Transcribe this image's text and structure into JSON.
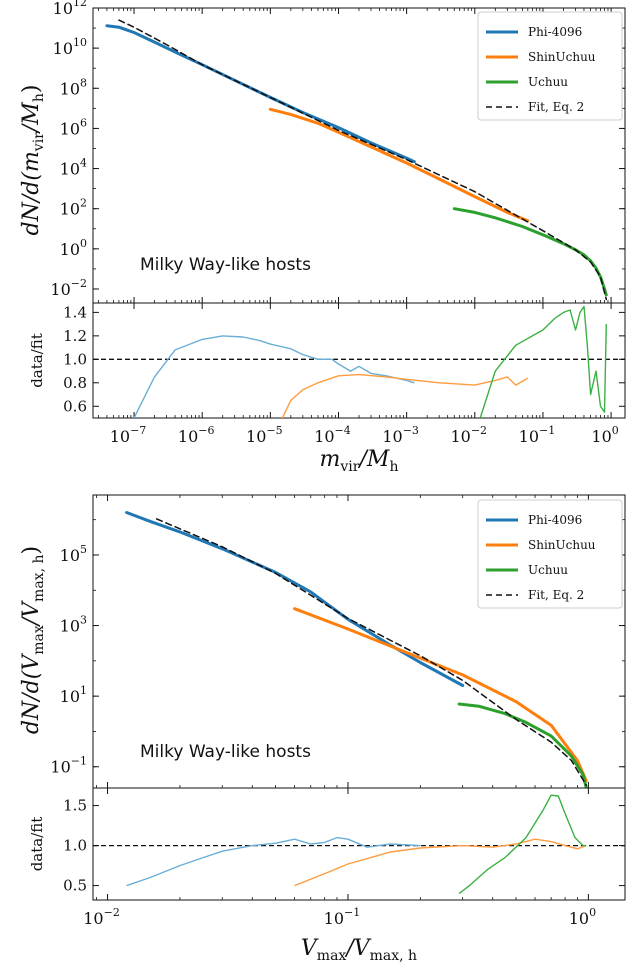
{
  "chart_data": [
    {
      "type": "line",
      "annotation": "Milky Way-like hosts",
      "xlabel_main": "m",
      "xlabel_sub": "vir",
      "xlabel_den": "/M",
      "xlabel_den_sub": "h",
      "ylabel_main": "dN/d(m",
      "ylabel_sub": "vir",
      "ylabel_den": "/M",
      "ylabel_den_sub": "h",
      "ylabel_close": ")",
      "ratio_ylabel": "data/fit",
      "xscale": "log",
      "yscale": "log",
      "xlim": [
        2.5e-08,
        1.6
      ],
      "ylim": [
        0.002,
        1000000000000.0
      ],
      "ratio_ylim": [
        0.5,
        1.48
      ],
      "x_ticks": [
        {
          "value": 1e-07,
          "base": "10",
          "exp": "−7"
        },
        {
          "value": 1e-06,
          "base": "10",
          "exp": "−6"
        },
        {
          "value": 1e-05,
          "base": "10",
          "exp": "−5"
        },
        {
          "value": 0.0001,
          "base": "10",
          "exp": "−4"
        },
        {
          "value": 0.001,
          "base": "10",
          "exp": "−3"
        },
        {
          "value": 0.01,
          "base": "10",
          "exp": "−2"
        },
        {
          "value": 0.1,
          "base": "10",
          "exp": "−1"
        },
        {
          "value": 1,
          "base": "10",
          "exp": "0"
        }
      ],
      "y_ticks": [
        {
          "value": 0.01,
          "base": "10",
          "exp": "−2"
        },
        {
          "value": 1,
          "base": "10",
          "exp": "0"
        },
        {
          "value": 100,
          "base": "10",
          "exp": "2"
        },
        {
          "value": 10000,
          "base": "10",
          "exp": "4"
        },
        {
          "value": 1000000,
          "base": "10",
          "exp": "6"
        },
        {
          "value": 100000000,
          "base": "10",
          "exp": "8"
        },
        {
          "value": 10000000000,
          "base": "10",
          "exp": "10"
        },
        {
          "value": 1000000000000,
          "base": "10",
          "exp": "12"
        }
      ],
      "ratio_ticks": [
        {
          "value": 0.6,
          "label": "0.6"
        },
        {
          "value": 0.8,
          "label": "0.8"
        },
        {
          "value": 1.0,
          "label": "1.0"
        },
        {
          "value": 1.2,
          "label": "1.2"
        },
        {
          "value": 1.4,
          "label": "1.4"
        }
      ],
      "legend": [
        "Phi-4096",
        "ShinUchuu",
        "Uchuu",
        "Fit, Eq. 2"
      ],
      "legend_position": "top-right",
      "series": [
        {
          "name": "Phi-4096",
          "color": "#1f77b4",
          "style": "solid",
          "x": [
            4e-08,
            6e-08,
            1e-07,
            2e-07,
            5e-07,
            1e-06,
            3e-06,
            1e-05,
            3e-05,
            0.0001,
            0.0003,
            0.001,
            0.0013
          ],
          "y": [
            130000000000.0,
            110000000000.0,
            60000000000.0,
            20000000000.0,
            4500000000.0,
            1500000000.0,
            250000000.0,
            35000000.0,
            6200000.0,
            1100000.0,
            190000.0,
            33000.0,
            22000.0
          ]
        },
        {
          "name": "ShinUchuu",
          "color": "#ff7f0e",
          "style": "solid",
          "x": [
            1e-05,
            2e-05,
            5e-05,
            0.0001,
            0.0003,
            0.001,
            0.003,
            0.01,
            0.03,
            0.06
          ],
          "y": [
            9000000.0,
            5000000.0,
            1800000.0,
            650000.0,
            120000.0,
            19000.0,
            3000.0,
            400,
            65,
            25
          ]
        },
        {
          "name": "Uchuu",
          "color": "#2ca02c",
          "style": "solid",
          "x": [
            0.005,
            0.01,
            0.02,
            0.05,
            0.1,
            0.2,
            0.3,
            0.4,
            0.5,
            0.6,
            0.7,
            0.8,
            0.85
          ],
          "y": [
            100,
            65,
            35,
            13,
            5,
            1.8,
            0.9,
            0.5,
            0.25,
            0.11,
            0.04,
            0.01,
            0.005
          ]
        },
        {
          "name": "Fit, Eq. 2",
          "color": "#111111",
          "style": "dashed",
          "x": [
            6e-08,
            1e-07,
            3e-07,
            1e-06,
            1e-05,
            0.0001,
            0.001,
            0.01,
            0.1,
            0.3,
            0.5,
            0.7,
            0.85
          ],
          "y": [
            250000000000.0,
            110000000000.0,
            15000000000.0,
            1500000000.0,
            35000000.0,
            800000.0,
            28000.0,
            700,
            8,
            0.9,
            0.22,
            0.04,
            0.003
          ]
        }
      ],
      "ratio_series": [
        {
          "name": "Phi-4096",
          "color": "#6aaed6",
          "x": [
            1e-07,
            2e-07,
            4e-07,
            1e-06,
            2e-06,
            4e-06,
            7e-06,
            1e-05,
            2e-05,
            3e-05,
            5e-05,
            8e-05,
            0.0001,
            0.00015,
            0.0002,
            0.0003,
            0.0005,
            0.001,
            0.0013
          ],
          "y": [
            0.5,
            0.85,
            1.08,
            1.17,
            1.2,
            1.19,
            1.16,
            1.13,
            1.09,
            1.04,
            1.0,
            1.0,
            0.96,
            0.9,
            0.94,
            0.88,
            0.86,
            0.82,
            0.8
          ]
        },
        {
          "name": "ShinUchuu",
          "color": "#ff9c3f",
          "x": [
            1.5e-05,
            2e-05,
            3e-05,
            5e-05,
            8e-05,
            0.0001,
            0.0002,
            0.0005,
            0.001,
            0.003,
            0.01,
            0.02,
            0.03,
            0.04,
            0.06
          ],
          "y": [
            0.5,
            0.65,
            0.74,
            0.8,
            0.84,
            0.86,
            0.87,
            0.85,
            0.83,
            0.8,
            0.78,
            0.82,
            0.85,
            0.78,
            0.84
          ]
        },
        {
          "name": "Uchuu",
          "color": "#3cb043",
          "x": [
            0.012,
            0.02,
            0.04,
            0.1,
            0.15,
            0.2,
            0.25,
            0.3,
            0.35,
            0.4,
            0.45,
            0.5,
            0.6,
            0.7,
            0.8,
            0.85
          ],
          "y": [
            0.5,
            0.9,
            1.12,
            1.25,
            1.35,
            1.4,
            1.42,
            1.25,
            1.4,
            1.45,
            1.1,
            0.7,
            0.9,
            0.6,
            0.55,
            1.3
          ]
        }
      ]
    },
    {
      "type": "line",
      "annotation": "Milky Way-like hosts",
      "xlabel_main": "V",
      "xlabel_sub": "max",
      "xlabel_den": "/V",
      "xlabel_den_sub": "max, h",
      "ylabel_main": "dN/d(V",
      "ylabel_sub": "max",
      "ylabel_den": "/V",
      "ylabel_den_sub": "max, h",
      "ylabel_close": ")",
      "ratio_ylabel": "data/fit",
      "xscale": "log",
      "yscale": "log",
      "xlim": [
        0.0087,
        1.42
      ],
      "ylim": [
        0.025,
        5000000.0
      ],
      "ratio_ylim": [
        0.32,
        1.72
      ],
      "x_ticks": [
        {
          "value": 0.01,
          "base": "10",
          "exp": "−2"
        },
        {
          "value": 0.1,
          "base": "10",
          "exp": "−1"
        },
        {
          "value": 1,
          "base": "10",
          "exp": "0"
        }
      ],
      "y_ticks": [
        {
          "value": 0.1,
          "base": "10",
          "exp": "−1"
        },
        {
          "value": 10,
          "base": "10",
          "exp": "1"
        },
        {
          "value": 1000,
          "base": "10",
          "exp": "3"
        },
        {
          "value": 100000,
          "base": "10",
          "exp": "5"
        }
      ],
      "ratio_ticks": [
        {
          "value": 0.5,
          "label": "0.5"
        },
        {
          "value": 1.0,
          "label": "1.0"
        },
        {
          "value": 1.5,
          "label": "1.5"
        }
      ],
      "legend": [
        "Phi-4096",
        "ShinUchuu",
        "Uchuu",
        "Fit, Eq. 2"
      ],
      "legend_position": "top-right",
      "series": [
        {
          "name": "Phi-4096",
          "color": "#1f77b4",
          "style": "solid",
          "x": [
            0.012,
            0.015,
            0.02,
            0.03,
            0.05,
            0.07,
            0.1,
            0.15,
            0.2,
            0.3
          ],
          "y": [
            1600000.0,
            900000.0,
            450000.0,
            150000.0,
            32000.0,
            9000.0,
            1500.0,
            280,
            90,
            20
          ]
        },
        {
          "name": "ShinUchuu",
          "color": "#ff7f0e",
          "style": "solid",
          "x": [
            0.06,
            0.1,
            0.2,
            0.3,
            0.5,
            0.7,
            0.9,
            0.98
          ],
          "y": [
            3000,
            800,
            120,
            40,
            7,
            1.5,
            0.15,
            0.04
          ]
        },
        {
          "name": "Uchuu",
          "color": "#2ca02c",
          "style": "solid",
          "x": [
            0.29,
            0.35,
            0.45,
            0.55,
            0.7,
            0.85,
            0.95,
            0.98
          ],
          "y": [
            6,
            5.2,
            3.2,
            1.8,
            0.75,
            0.2,
            0.06,
            0.025
          ]
        },
        {
          "name": "Fit, Eq. 2",
          "color": "#111111",
          "style": "dashed",
          "x": [
            0.016,
            0.02,
            0.03,
            0.05,
            0.1,
            0.2,
            0.3,
            0.5,
            0.7,
            0.85,
            0.98
          ],
          "y": [
            1050000.0,
            550000.0,
            170000.0,
            30000.0,
            1600.0,
            140,
            28,
            2.2,
            0.5,
            0.15,
            0.03
          ]
        }
      ],
      "ratio_series": [
        {
          "name": "Phi-4096",
          "color": "#6aaed6",
          "x": [
            0.012,
            0.015,
            0.02,
            0.025,
            0.03,
            0.04,
            0.05,
            0.06,
            0.07,
            0.08,
            0.09,
            0.1,
            0.12,
            0.15,
            0.2
          ],
          "y": [
            0.5,
            0.6,
            0.75,
            0.85,
            0.93,
            1.0,
            1.03,
            1.08,
            1.02,
            1.04,
            1.1,
            1.08,
            0.98,
            1.02,
            1.0
          ]
        },
        {
          "name": "ShinUchuu",
          "color": "#ff9c3f",
          "x": [
            0.06,
            0.08,
            0.1,
            0.15,
            0.2,
            0.3,
            0.4,
            0.5,
            0.6,
            0.7,
            0.8,
            0.9,
            0.98
          ],
          "y": [
            0.5,
            0.65,
            0.77,
            0.92,
            0.97,
            1.0,
            0.98,
            1.02,
            1.08,
            1.05,
            1.0,
            0.96,
            1.0
          ]
        },
        {
          "name": "Uchuu",
          "color": "#3cb043",
          "x": [
            0.29,
            0.32,
            0.38,
            0.45,
            0.55,
            0.65,
            0.7,
            0.75,
            0.8,
            0.88,
            0.95,
            0.98
          ],
          "y": [
            0.4,
            0.5,
            0.7,
            0.85,
            1.1,
            1.45,
            1.63,
            1.62,
            1.4,
            1.1,
            1.0,
            1.0
          ]
        }
      ]
    }
  ]
}
